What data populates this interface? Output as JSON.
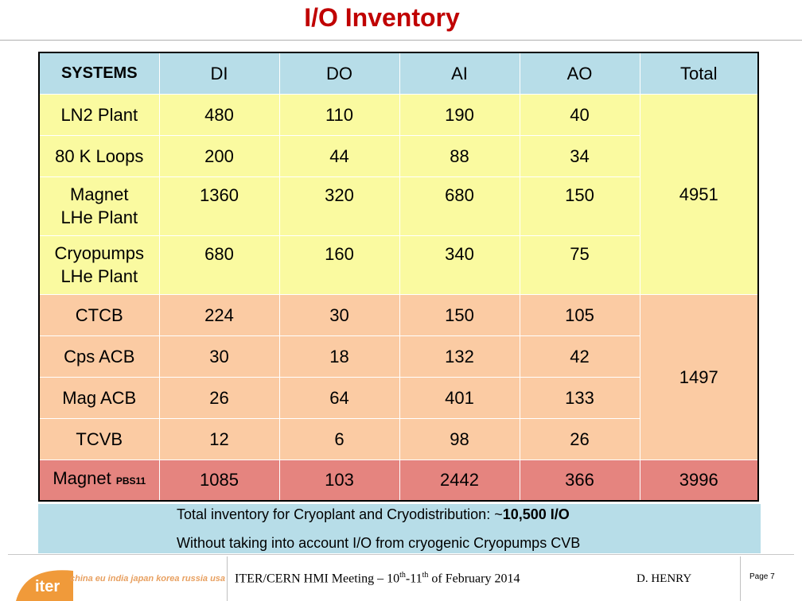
{
  "title": "I/O Inventory",
  "table": {
    "headers": [
      "SYSTEMS",
      "DI",
      "DO",
      "AI",
      "AO",
      "Total"
    ],
    "rows": [
      {
        "system": "LN2 Plant",
        "di": "480",
        "do": "110",
        "ai": "190",
        "ao": "40"
      },
      {
        "system": "80 K Loops",
        "di": "200",
        "do": "44",
        "ai": "88",
        "ao": "34"
      },
      {
        "system_line1": "Magnet",
        "system_line2": "LHe Plant",
        "di": "1360",
        "do": "320",
        "ai": "680",
        "ao": "150"
      },
      {
        "system_line1": "Cryopumps",
        "system_line2": "LHe Plant",
        "di": "680",
        "do": "160",
        "ai": "340",
        "ao": "75"
      },
      {
        "system": "CTCB",
        "di": "224",
        "do": "30",
        "ai": "150",
        "ao": "105"
      },
      {
        "system": "Cps ACB",
        "di": "30",
        "do": "18",
        "ai": "132",
        "ao": "42"
      },
      {
        "system": "Mag ACB",
        "di": "26",
        "do": "64",
        "ai": "401",
        "ao": "133"
      },
      {
        "system": "TCVB",
        "di": "12",
        "do": "6",
        "ai": "98",
        "ao": "26"
      },
      {
        "system": "Magnet",
        "system_sub": "PBS11",
        "di": "1085",
        "do": "103",
        "ai": "2442",
        "ao": "366"
      }
    ],
    "group_totals": {
      "plant": "4951",
      "distribution": "1497",
      "magnet": "3996"
    },
    "colors": {
      "header": "#b7dde8",
      "plant_group": "#fafaa0",
      "distribution_group": "#fbcba3",
      "magnet_row": "#e5847f"
    }
  },
  "summary": {
    "line1_prefix": "Total inventory for Cryoplant and Cryodistribution: ~",
    "line1_value": "10,500  I/O",
    "line2": "Without taking into account I/O from cryogenic Cryopumps CVB"
  },
  "footer": {
    "logo_text": "iter",
    "logo_tagline": "china eu india japan korea russia usa",
    "meeting_prefix": "ITER/CERN HMI Meeting – 10",
    "meeting_sup1": "th",
    "meeting_mid": "-11",
    "meeting_sup2": "th",
    "meeting_suffix": " of February 2014",
    "author": "D.  HENRY",
    "page": "Page 7"
  }
}
